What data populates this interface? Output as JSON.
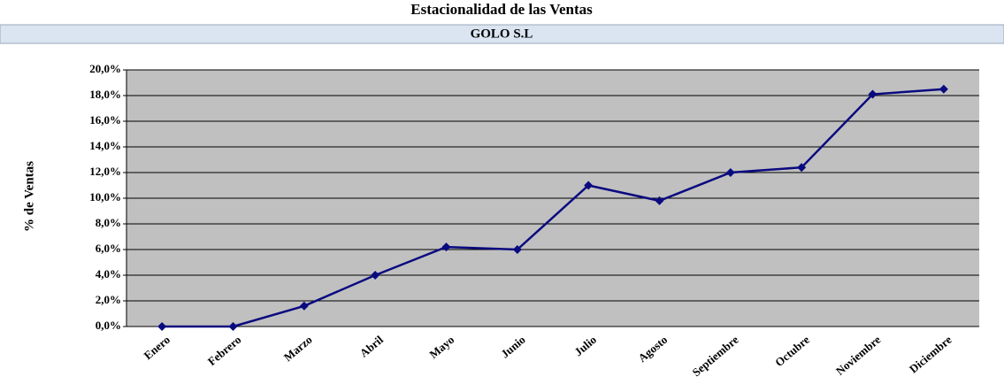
{
  "chart_data": {
    "type": "line",
    "title": "Estacionalidad de las Ventas",
    "subtitle": "GOLO S.L",
    "y_label": "% de Ventas",
    "categories": [
      "Enero",
      "Febrero",
      "Marzo",
      "Abril",
      "Mayo",
      "Junio",
      "Julio",
      "Agosto",
      "Septiembre",
      "Octubre",
      "Noviembre",
      "Diciembre"
    ],
    "values": [
      0,
      0,
      1.6,
      4.0,
      6.2,
      6.0,
      11.0,
      9.8,
      12.0,
      12.4,
      18.1,
      18.5
    ],
    "color": "#0a0a80",
    "ylim": [
      0,
      20
    ],
    "yticks": [
      {
        "value": 0,
        "label": "0,0%"
      },
      {
        "value": 2,
        "label": "2,0%"
      },
      {
        "value": 4,
        "label": "4,0%"
      },
      {
        "value": 6,
        "label": "6,0%"
      },
      {
        "value": 8,
        "label": "8,0%"
      },
      {
        "value": 10,
        "label": "10,0%"
      },
      {
        "value": 12,
        "label": "12,0%"
      },
      {
        "value": 14,
        "label": "14,0%"
      },
      {
        "value": 16,
        "label": "16,0%"
      },
      {
        "value": 18,
        "label": "18,0%"
      },
      {
        "value": 20,
        "label": "20,0%"
      }
    ],
    "grid": true
  }
}
